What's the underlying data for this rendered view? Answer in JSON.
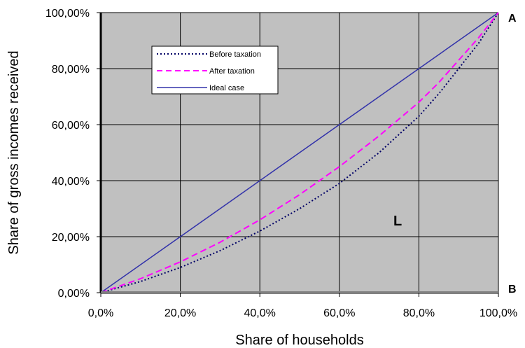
{
  "chart_data": {
    "type": "line",
    "title": "",
    "xlabel": "Share of households",
    "ylabel": "Share of gross incomes received",
    "xlim": [
      0,
      100
    ],
    "ylim": [
      0,
      100
    ],
    "x_ticks": [
      "0,0%",
      "20,0%",
      "40,0%",
      "60,0%",
      "80,0%",
      "100,0%"
    ],
    "y_ticks": [
      "0,00%",
      "20,00%",
      "40,00%",
      "60,00%",
      "80,00%",
      "100,00%"
    ],
    "grid": true,
    "legend_position": "top-left inside plot",
    "background": "#c0c0c0",
    "series": [
      {
        "name": "Before taxation",
        "color": "#000066",
        "style": "dotted",
        "x": [
          0,
          10,
          20,
          30,
          40,
          50,
          60,
          70,
          80,
          85,
          90,
          95,
          100
        ],
        "y": [
          0,
          4,
          9,
          15,
          22,
          30,
          39,
          50,
          63,
          71,
          80,
          89,
          100
        ]
      },
      {
        "name": "After taxation",
        "color": "#ff00ff",
        "style": "dashed",
        "x": [
          0,
          10,
          20,
          30,
          40,
          50,
          60,
          70,
          80,
          85,
          90,
          95,
          100
        ],
        "y": [
          0,
          5,
          11,
          18,
          26,
          35,
          45,
          56,
          68,
          75,
          83,
          91,
          100
        ]
      },
      {
        "name": "Ideal case",
        "color": "#3333aa",
        "style": "solid",
        "x": [
          0,
          100
        ],
        "y": [
          0,
          100
        ]
      }
    ],
    "annotations": [
      {
        "text": "A",
        "anchor": "top-right corner"
      },
      {
        "text": "B",
        "anchor": "bottom-right corner"
      },
      {
        "text": "L",
        "anchor": "inside plot between curves"
      }
    ]
  }
}
